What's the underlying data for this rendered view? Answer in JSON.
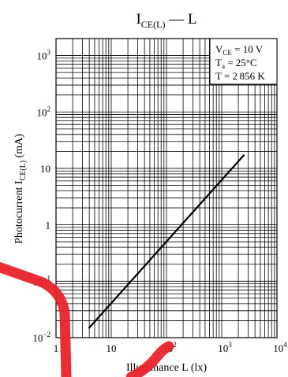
{
  "chart_data": {
    "type": "line",
    "title": {
      "main": "I",
      "sub": "CE(L)",
      "tail": " — L"
    },
    "xlabel": "Illuminance  L  (lx)",
    "ylabel": {
      "main": "Photocurrent  I",
      "sub": "CE(L)",
      "tail": "  (mA)"
    },
    "x_scale": "log",
    "y_scale": "log",
    "xlim": [
      1,
      10000
    ],
    "ylim": [
      0.01,
      2000
    ],
    "grid": true,
    "x_ticks": [
      {
        "base": "1",
        "exp": ""
      },
      {
        "base": "10",
        "exp": ""
      },
      {
        "base": "10",
        "exp": "2"
      },
      {
        "base": "10",
        "exp": "3"
      },
      {
        "base": "10",
        "exp": "4"
      }
    ],
    "y_ticks": [
      {
        "base": "10",
        "exp": "−2"
      },
      {
        "base": "10",
        "exp": "−1"
      },
      {
        "base": "1",
        "exp": ""
      },
      {
        "base": "10",
        "exp": ""
      },
      {
        "base": "10",
        "exp": "2"
      },
      {
        "base": "10",
        "exp": "3"
      }
    ],
    "legend_position": "top-right",
    "conditions": [
      {
        "main": "V",
        "sub": "CE",
        "tail": " = 10 V"
      },
      {
        "main": "T",
        "sub": "a",
        "tail": " = 25°C"
      },
      {
        "main": "T",
        "sub": "",
        "tail": " = 2 856 K"
      }
    ],
    "series": [
      {
        "x": [
          4,
          2500
        ],
        "y": [
          0.015,
          17
        ]
      }
    ]
  },
  "colors": {
    "watermark": "#e8232b",
    "ink": "#000000"
  }
}
